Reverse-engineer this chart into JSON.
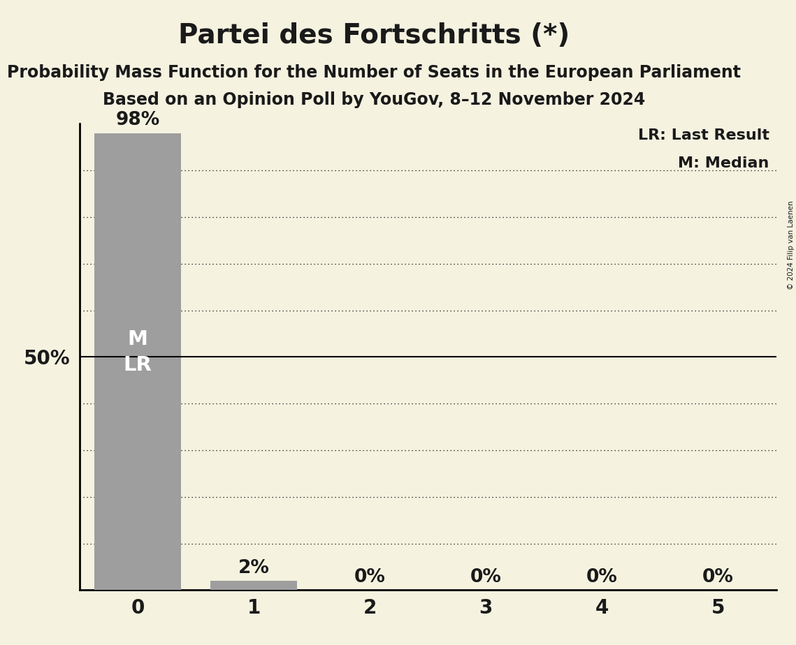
{
  "title": "Partei des Fortschritts (*)",
  "subtitle1": "Probability Mass Function for the Number of Seats in the European Parliament",
  "subtitle2": "Based on an Opinion Poll by YouGov, 8–12 November 2024",
  "copyright": "© 2024 Filip van Laenen",
  "categories": [
    0,
    1,
    2,
    3,
    4,
    5
  ],
  "values": [
    0.98,
    0.02,
    0.0,
    0.0,
    0.0,
    0.0
  ],
  "bar_color": "#9e9e9e",
  "background_color": "#f5f2e0",
  "text_color": "#1a1a1a",
  "median": 0,
  "last_result": 0,
  "yticks": [
    0.1,
    0.2,
    0.3,
    0.4,
    0.5,
    0.6,
    0.7,
    0.8,
    0.9
  ],
  "ytick_labels_shown": [
    "50%"
  ],
  "ytick_labels_val": [
    0.5
  ],
  "solid_line_at": 0.5,
  "legend_lr": "LR: Last Result",
  "legend_m": "M: Median",
  "bar_width": 0.75,
  "title_fontsize": 28,
  "subtitle_fontsize": 17,
  "label_fontsize": 19,
  "tick_fontsize": 20,
  "legend_fontsize": 16,
  "ytick_label_fontsize": 20,
  "percent_labels": [
    "98%",
    "2%",
    "0%",
    "0%",
    "0%",
    "0%"
  ],
  "ymax": 1.0
}
